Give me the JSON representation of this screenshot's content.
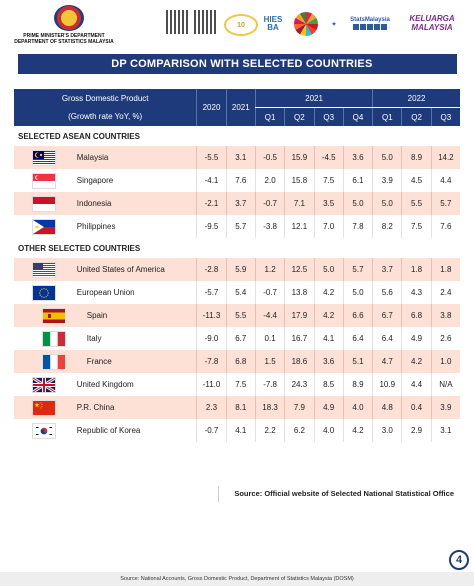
{
  "header": {
    "ministry_line1": "PRIME MINISTER'S DEPARTMENT",
    "ministry_line2": "DEPARTMENT OF STATISTICS MALAYSIA",
    "logo_hies": "HIES BA",
    "logo_stats": "StatsMalaysia",
    "logo_keluarga": "KELUARGA MALAYSIA"
  },
  "title": "GDP COMPARISON WITH SELECTED COUNTRIES",
  "table": {
    "label_line1": "Gross Domestic Product",
    "label_line2": "(Growth rate YoY, %)",
    "year_2020": "2020",
    "year_2021": "2021",
    "group_2021": "2021",
    "group_2022": "2022",
    "q_2021": [
      "Q1",
      "Q2",
      "Q3",
      "Q4"
    ],
    "q_2022": [
      "Q1",
      "Q2",
      "Q3"
    ],
    "section_asean": "SELECTED ASEAN COUNTRIES",
    "section_other": "OTHER SELECTED COUNTRIES",
    "asean": [
      {
        "name": "Malaysia",
        "flag": "malaysia-flag",
        "values": [
          "-5.5",
          "3.1",
          "-0.5",
          "15.9",
          "-4.5",
          "3.6",
          "5.0",
          "8.9",
          "14.2"
        ]
      },
      {
        "name": "Singapore",
        "flag": "singapore-flag",
        "values": [
          "-4.1",
          "7.6",
          "2.0",
          "15.8",
          "7.5",
          "6.1",
          "3.9",
          "4.5",
          "4.4"
        ]
      },
      {
        "name": "Indonesia",
        "flag": "indonesia-flag",
        "values": [
          "-2.1",
          "3.7",
          "-0.7",
          "7.1",
          "3.5",
          "5.0",
          "5.0",
          "5.5",
          "5.7"
        ]
      },
      {
        "name": "Philippines",
        "flag": "philippines-flag",
        "values": [
          "-9.5",
          "5.7",
          "-3.8",
          "12.1",
          "7.0",
          "7.8",
          "8.2",
          "7.5",
          "7.6"
        ]
      }
    ],
    "other": [
      {
        "name": "United States of America",
        "flag": "usa-flag",
        "values": [
          "-2.8",
          "5.9",
          "1.2",
          "12.5",
          "5.0",
          "5.7",
          "3.7",
          "1.8",
          "1.8"
        ]
      },
      {
        "name": "European Union",
        "flag": "eu-flag",
        "values": [
          "-5.7",
          "5.4",
          "-0.7",
          "13.8",
          "4.2",
          "5.0",
          "5.6",
          "4.3",
          "2.4"
        ]
      },
      {
        "name": "Spain",
        "flag": "spain-flag",
        "values": [
          "-11.3",
          "5.5",
          "-4.4",
          "17.9",
          "4.2",
          "6.6",
          "6.7",
          "6.8",
          "3.8"
        ]
      },
      {
        "name": "Italy",
        "flag": "italy-flag",
        "values": [
          "-9.0",
          "6.7",
          "0.1",
          "16.7",
          "4.1",
          "6.4",
          "6.4",
          "4.9",
          "2.6"
        ]
      },
      {
        "name": "France",
        "flag": "france-flag",
        "values": [
          "-7.8",
          "6.8",
          "1.5",
          "18.6",
          "3.6",
          "5.1",
          "4.7",
          "4.2",
          "1.0"
        ]
      },
      {
        "name": "United Kingdom",
        "flag": "uk-flag",
        "values": [
          "-11.0",
          "7.5",
          "-7.8",
          "24.3",
          "8.5",
          "8.9",
          "10.9",
          "4.4",
          "N/A"
        ]
      },
      {
        "name": "P.R. China",
        "flag": "china-flag",
        "values": [
          "2.3",
          "8.1",
          "18.3",
          "7.9",
          "4.9",
          "4.0",
          "4.8",
          "0.4",
          "3.9"
        ]
      },
      {
        "name": "Republic of Korea",
        "flag": "korea-flag",
        "values": [
          "-0.7",
          "4.1",
          "2.2",
          "6.2",
          "4.0",
          "4.2",
          "3.0",
          "2.9",
          "3.1"
        ]
      }
    ]
  },
  "source": "Source: Official website of Selected National Statistical Office",
  "footer": "Source: National Accounts, Gross Domestic Product, Department of Statistics Malaysia (DOSM)",
  "page_number": "4",
  "colors": {
    "navy": "#1f3a7a",
    "pink_row": "#fde0d6"
  }
}
